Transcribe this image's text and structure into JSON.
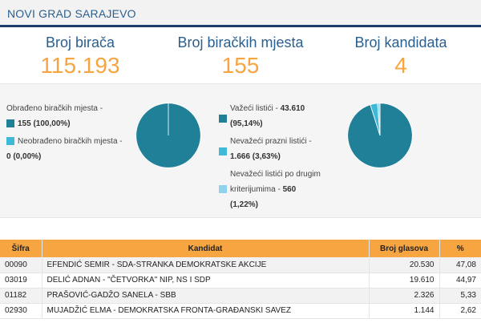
{
  "header": {
    "title": "NOVI GRAD SARAJEVO"
  },
  "stats": [
    {
      "label": "Broj birača",
      "value": "115.193"
    },
    {
      "label": "Broj biračkih mjesta",
      "value": "155"
    },
    {
      "label": "Broj kandidata",
      "value": "4"
    }
  ],
  "stations": {
    "processed_label": "Obrađeno biračkih mjesta -",
    "processed_value": "155 (100,00%)",
    "unprocessed_label": "Neobrađeno biračkih mjesta -",
    "unprocessed_value": "0 (0,00%)"
  },
  "ballots": {
    "valid_label": "Važeći listići -",
    "valid_value": "43.610",
    "valid_pct": "(95,14%)",
    "blank_label": "Nevažeći prazni listići -",
    "blank_value": "1.666 (3,63%)",
    "other_label_line1": "Nevažeći listići po drugim",
    "other_label_line2": "kriterijumima -",
    "other_value": "560",
    "other_pct": "(1,22%)"
  },
  "colors": {
    "primary": "#1f8098",
    "secondary": "#40b8d8",
    "tertiary": "#8ed3eb",
    "accent": "#f7a540",
    "title": "#2a5f8f"
  },
  "chart_data": [
    {
      "type": "pie",
      "categories": [
        "Obrađeno biračkih mjesta",
        "Neobrađeno biračkih mjesta"
      ],
      "values": [
        155,
        0
      ],
      "percent": [
        100.0,
        0.0
      ]
    },
    {
      "type": "pie",
      "categories": [
        "Važeći listići",
        "Nevažeći prazni listići",
        "Nevažeći listići po drugim kriterijumima"
      ],
      "values": [
        43610,
        1666,
        560
      ],
      "percent": [
        95.14,
        3.63,
        1.22
      ]
    }
  ],
  "table": {
    "headers": [
      "Šifra",
      "Kandidat",
      "Broj glasova",
      "%"
    ],
    "rows": [
      [
        "00090",
        "EFENDIĆ SEMIR - SDA-STRANKA DEMOKRATSKE AKCIJE",
        "20.530",
        "47,08"
      ],
      [
        "03019",
        "DELIĆ ADNAN - \"ČETVORKA\" NIP, NS I SDP",
        "19.610",
        "44,97"
      ],
      [
        "01182",
        "PRAŠOVIĆ-GADŽO SANELA - SBB",
        "2.326",
        "5,33"
      ],
      [
        "02930",
        "MUJADŽIĆ ELMA - DEMOKRATSKA FRONTA-GRAĐANSKI SAVEZ",
        "1.144",
        "2,62"
      ]
    ]
  }
}
